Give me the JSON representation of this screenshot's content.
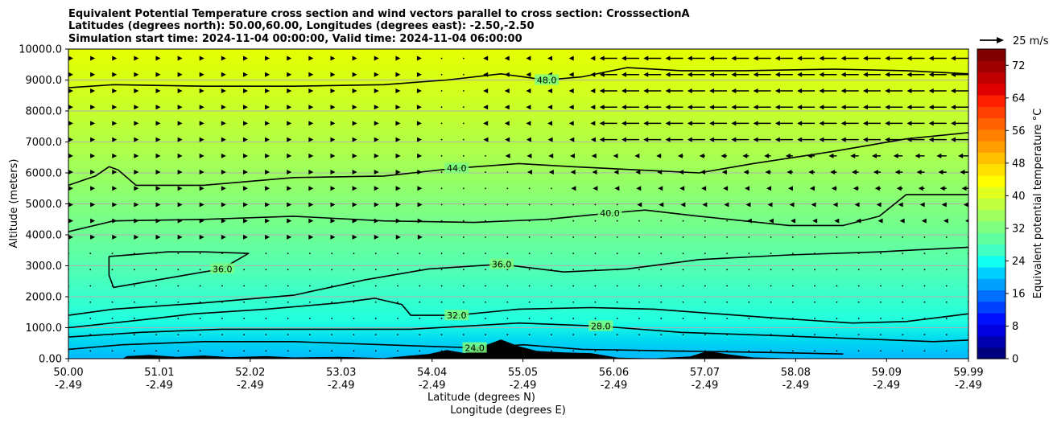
{
  "chart_data": {
    "type": "heatmap",
    "title_lines": [
      "Equivalent Potential Temperature cross section and wind vectors parallel to cross section: CrosssectionA",
      "Latitudes (degrees north): 50.00,60.00, Longitudes (degrees east): -2.50,-2.50",
      "Simulation start time: 2024-11-04 00:00:00, Valid time: 2024-11-04 06:00:00"
    ],
    "xlabel_lines": [
      "Latitude (degrees N)",
      "Longitude (degrees E)"
    ],
    "ylabel": "Altitude (meters)",
    "x_ticks": [
      {
        "lat": "50.00",
        "lon": "-2.49",
        "pos": 0.0
      },
      {
        "lat": "51.01",
        "lon": "-2.49",
        "pos": 0.101
      },
      {
        "lat": "52.02",
        "lon": "-2.49",
        "pos": 0.202
      },
      {
        "lat": "53.03",
        "lon": "-2.49",
        "pos": 0.303
      },
      {
        "lat": "54.04",
        "lon": "-2.49",
        "pos": 0.404
      },
      {
        "lat": "55.05",
        "lon": "-2.49",
        "pos": 0.505
      },
      {
        "lat": "56.06",
        "lon": "-2.49",
        "pos": 0.606
      },
      {
        "lat": "57.07",
        "lon": "-2.49",
        "pos": 0.707
      },
      {
        "lat": "58.08",
        "lon": "-2.49",
        "pos": 0.808
      },
      {
        "lat": "59.09",
        "lon": "-2.49",
        "pos": 0.909
      },
      {
        "lat": "59.99",
        "lon": "-2.49",
        "pos": 1.0
      }
    ],
    "y_ticks": [
      "0.00",
      "1000.0",
      "2000.0",
      "3000.0",
      "4000.0",
      "5000.0",
      "6000.0",
      "7000.0",
      "8000.0",
      "9000.0",
      "10000.0"
    ],
    "y_tick_values": [
      0,
      1000,
      2000,
      3000,
      4000,
      5000,
      6000,
      7000,
      8000,
      9000,
      10000
    ],
    "ylim": [
      0,
      10000
    ],
    "xlim": [
      50.0,
      59.99
    ],
    "grid": "horizontal",
    "colorbar": {
      "label": "Equivalent potential temperature °C",
      "range": [
        0,
        76
      ],
      "ticks": [
        "0",
        "8",
        "16",
        "24",
        "32",
        "40",
        "48",
        "56",
        "64",
        "72"
      ],
      "tick_values": [
        0,
        8,
        16,
        24,
        32,
        40,
        48,
        56,
        64,
        72
      ]
    },
    "wind_key": "25 m/s",
    "contours": [
      {
        "label": "48.0",
        "points": [
          [
            50.0,
            8750
          ],
          [
            50.5,
            8850
          ],
          [
            51.5,
            8800
          ],
          [
            52.5,
            8800
          ],
          [
            53.5,
            8850
          ],
          [
            54.2,
            9000
          ],
          [
            54.8,
            9200
          ],
          [
            55.05,
            9100
          ],
          [
            55.3,
            9000
          ],
          [
            55.7,
            9100
          ],
          [
            56.2,
            9400
          ],
          [
            56.8,
            9300
          ],
          [
            57.5,
            9300
          ],
          [
            58.5,
            9350
          ],
          [
            59.3,
            9300
          ],
          [
            59.99,
            9200
          ]
        ]
      },
      {
        "label": "44.0",
        "points": [
          [
            50.0,
            5600
          ],
          [
            50.3,
            5900
          ],
          [
            50.45,
            6200
          ],
          [
            50.55,
            6100
          ],
          [
            50.75,
            5600
          ],
          [
            51.5,
            5600
          ],
          [
            52.5,
            5850
          ],
          [
            53.5,
            5900
          ],
          [
            54.3,
            6150
          ],
          [
            55.0,
            6300
          ],
          [
            55.6,
            6200
          ],
          [
            56.3,
            6100
          ],
          [
            57.0,
            6000
          ],
          [
            57.6,
            6300
          ],
          [
            58.5,
            6700
          ],
          [
            59.3,
            7100
          ],
          [
            59.99,
            7300
          ]
        ]
      },
      {
        "label": "40.0",
        "points": [
          [
            50.0,
            4100
          ],
          [
            50.5,
            4450
          ],
          [
            51.5,
            4500
          ],
          [
            52.5,
            4600
          ],
          [
            53.5,
            4450
          ],
          [
            54.5,
            4400
          ],
          [
            55.3,
            4500
          ],
          [
            56.0,
            4700
          ],
          [
            56.4,
            4800
          ],
          [
            57.0,
            4600
          ],
          [
            58.0,
            4300
          ],
          [
            58.6,
            4300
          ],
          [
            59.0,
            4600
          ],
          [
            59.3,
            5300
          ],
          [
            59.99,
            5300
          ]
        ]
      },
      {
        "label": "36.0",
        "points": [
          [
            50.0,
            1400
          ],
          [
            50.5,
            1600
          ],
          [
            51.5,
            1800
          ],
          [
            52.5,
            2050
          ],
          [
            53.3,
            2550
          ],
          [
            54.0,
            2900
          ],
          [
            54.8,
            3050
          ],
          [
            55.5,
            2800
          ],
          [
            56.2,
            2900
          ],
          [
            57.0,
            3200
          ],
          [
            58.0,
            3350
          ],
          [
            59.0,
            3450
          ],
          [
            59.99,
            3600
          ]
        ]
      },
      {
        "label": "36.0",
        "points": [
          [
            50.45,
            3300
          ],
          [
            51.1,
            3450
          ],
          [
            51.5,
            3450
          ],
          [
            52.0,
            3400
          ],
          [
            51.7,
            2900
          ],
          [
            51.1,
            2600
          ],
          [
            50.5,
            2300
          ],
          [
            50.45,
            2700
          ],
          [
            50.45,
            3300
          ]
        ]
      },
      {
        "label": "32.0",
        "points": [
          [
            50.0,
            1000
          ],
          [
            50.8,
            1250
          ],
          [
            51.4,
            1450
          ],
          [
            52.2,
            1600
          ],
          [
            53.0,
            1800
          ],
          [
            53.4,
            1950
          ],
          [
            53.7,
            1750
          ],
          [
            53.8,
            1400
          ],
          [
            54.3,
            1400
          ],
          [
            55.0,
            1600
          ],
          [
            55.8,
            1650
          ],
          [
            56.5,
            1600
          ],
          [
            57.2,
            1450
          ],
          [
            57.9,
            1300
          ],
          [
            58.7,
            1150
          ],
          [
            59.3,
            1200
          ],
          [
            59.99,
            1450
          ]
        ]
      },
      {
        "label": "28.0",
        "points": [
          [
            50.0,
            700
          ],
          [
            50.8,
            850
          ],
          [
            51.7,
            950
          ],
          [
            52.7,
            950
          ],
          [
            53.8,
            950
          ],
          [
            55.0,
            1150
          ],
          [
            55.9,
            1050
          ],
          [
            56.8,
            850
          ],
          [
            57.8,
            750
          ],
          [
            58.7,
            650
          ],
          [
            59.6,
            550
          ],
          [
            59.99,
            600
          ]
        ]
      },
      {
        "label": "24.0",
        "points": [
          [
            50.0,
            300
          ],
          [
            50.6,
            450
          ],
          [
            51.5,
            550
          ],
          [
            52.5,
            550
          ],
          [
            53.5,
            450
          ],
          [
            54.5,
            350
          ],
          [
            55.05,
            450
          ],
          [
            55.7,
            300
          ],
          [
            56.7,
            250
          ],
          [
            57.8,
            200
          ],
          [
            58.6,
            150
          ]
        ]
      }
    ],
    "terrain": [
      [
        50.0,
        0
      ],
      [
        50.6,
        0
      ],
      [
        50.65,
        80
      ],
      [
        50.9,
        120
      ],
      [
        51.2,
        60
      ],
      [
        51.5,
        100
      ],
      [
        51.8,
        50
      ],
      [
        52.2,
        80
      ],
      [
        52.5,
        40
      ],
      [
        53.0,
        60
      ],
      [
        53.5,
        20
      ],
      [
        53.8,
        100
      ],
      [
        54.0,
        150
      ],
      [
        54.2,
        280
      ],
      [
        54.4,
        180
      ],
      [
        54.6,
        400
      ],
      [
        54.8,
        620
      ],
      [
        55.0,
        400
      ],
      [
        55.2,
        250
      ],
      [
        55.5,
        200
      ],
      [
        55.8,
        180
      ],
      [
        56.1,
        30
      ],
      [
        56.5,
        10
      ],
      [
        56.9,
        70
      ],
      [
        57.1,
        250
      ],
      [
        57.3,
        150
      ],
      [
        57.6,
        40
      ],
      [
        57.9,
        20
      ],
      [
        58.2,
        0
      ],
      [
        59.99,
        0
      ]
    ]
  }
}
